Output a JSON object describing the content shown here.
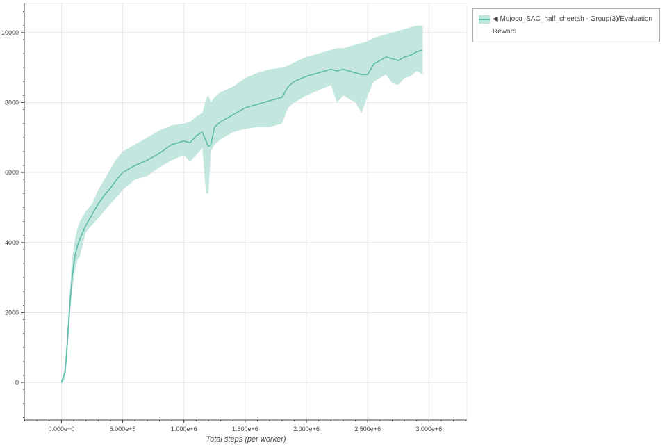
{
  "chart_data": {
    "type": "line",
    "title": "",
    "xlabel": "Total steps (per worker)",
    "ylabel": "",
    "xlim": [
      -303000,
      3310000
    ],
    "ylim": [
      -1070,
      10830
    ],
    "xticks": [
      0,
      500000,
      1000000,
      1500000,
      2000000,
      2500000,
      3000000
    ],
    "xtick_labels": [
      "0.000e+0",
      "5.000e+5",
      "1.000e+6",
      "1.500e+6",
      "2.000e+6",
      "2.500e+6",
      "3.000e+6"
    ],
    "yticks": [
      0,
      2000,
      4000,
      6000,
      8000,
      10000
    ],
    "ytick_labels": [
      "0",
      "2000",
      "4000",
      "6000",
      "8000",
      "10000"
    ],
    "grid": true,
    "legend_placement": "outside-top-right",
    "colors": {
      "line": "#5cbca7",
      "band": "#c0e5dd"
    },
    "series": [
      {
        "name": "◀ Mujoco_SAC_half_cheetah - Group(3)/Evaluation Reward",
        "x": [
          0,
          30000,
          50000,
          70000,
          90000,
          110000,
          130000,
          150000,
          200000,
          250000,
          300000,
          350000,
          400000,
          450000,
          500000,
          600000,
          700000,
          800000,
          900000,
          1000000,
          1050000,
          1100000,
          1150000,
          1180000,
          1200000,
          1220000,
          1250000,
          1300000,
          1400000,
          1500000,
          1600000,
          1700000,
          1800000,
          1850000,
          1900000,
          2000000,
          2100000,
          2200000,
          2250000,
          2300000,
          2350000,
          2400000,
          2450000,
          2500000,
          2550000,
          2650000,
          2700000,
          2750000,
          2800000,
          2850000,
          2900000,
          2950000
        ],
        "mean": [
          0,
          300,
          1200,
          2300,
          3100,
          3600,
          3900,
          4100,
          4500,
          4800,
          5100,
          5350,
          5550,
          5800,
          6000,
          6200,
          6350,
          6550,
          6800,
          6900,
          6850,
          7050,
          7150,
          6900,
          6750,
          6800,
          7300,
          7450,
          7650,
          7850,
          7950,
          8050,
          8150,
          8450,
          8600,
          8750,
          8850,
          8950,
          8900,
          8950,
          8900,
          8850,
          8800,
          8800,
          9100,
          9300,
          9250,
          9200,
          9300,
          9350,
          9450,
          9500
        ],
        "lower": [
          -50,
          100,
          900,
          2000,
          2700,
          3200,
          3500,
          3600,
          4300,
          4500,
          4700,
          4900,
          5100,
          5300,
          5500,
          5800,
          5900,
          6150,
          6350,
          6500,
          6300,
          6500,
          6700,
          5400,
          5400,
          6600,
          6800,
          6950,
          7150,
          7250,
          7300,
          7300,
          7400,
          7850,
          8000,
          8200,
          8350,
          8500,
          8000,
          8200,
          8100,
          8000,
          7700,
          8200,
          8600,
          8800,
          8550,
          8500,
          8700,
          8750,
          8900,
          8800
        ],
        "upper": [
          50,
          500,
          1600,
          2700,
          3600,
          4100,
          4400,
          4600,
          4900,
          5100,
          5500,
          5800,
          6100,
          6400,
          6600,
          6800,
          7000,
          7200,
          7350,
          7400,
          7450,
          7600,
          7700,
          8100,
          8200,
          8000,
          8150,
          8300,
          8450,
          8700,
          8850,
          8950,
          9000,
          9050,
          9150,
          9300,
          9400,
          9500,
          9550,
          9550,
          9600,
          9650,
          9700,
          9750,
          9850,
          9950,
          10000,
          10050,
          10100,
          10150,
          10200,
          10200
        ]
      }
    ]
  }
}
